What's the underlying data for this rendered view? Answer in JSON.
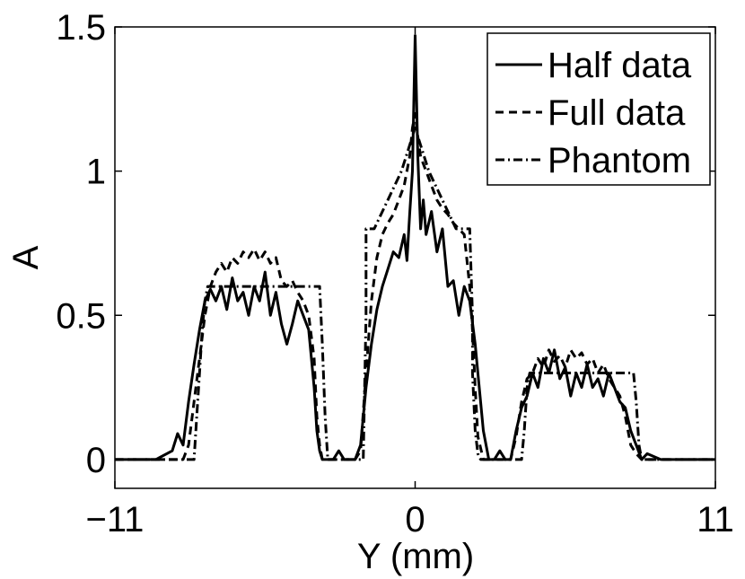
{
  "chart_data": {
    "type": "line",
    "title": "",
    "xlabel": "Y (mm)",
    "ylabel": "A",
    "xlim": [
      -11,
      11
    ],
    "ylim": [
      -0.1,
      1.5
    ],
    "x_ticks": [
      -11,
      0,
      11
    ],
    "x_tick_labels": [
      "−11",
      "0",
      "11"
    ],
    "y_ticks": [
      0,
      0.5,
      1,
      1.5
    ],
    "y_tick_labels": [
      "0",
      "0.5",
      "1",
      "1.5"
    ],
    "grid": false,
    "legend_position": "top-right",
    "series": [
      {
        "name": "Half data",
        "style": "solid",
        "x": [
          -11,
          -9.5,
          -8.9,
          -8.7,
          -8.5,
          -8.3,
          -8.1,
          -7.9,
          -7.7,
          -7.5,
          -7.3,
          -7.1,
          -6.9,
          -6.7,
          -6.5,
          -6.3,
          -6.1,
          -5.9,
          -5.7,
          -5.5,
          -5.3,
          -5.1,
          -4.9,
          -4.7,
          -4.5,
          -4.3,
          -4.1,
          -3.9,
          -3.7,
          -3.6,
          -3.5,
          -3.4,
          -3.2,
          -3.0,
          -2.8,
          -2.6,
          -2.4,
          -2.2,
          -2.0,
          -1.8,
          -1.6,
          -1.4,
          -1.2,
          -1.0,
          -0.8,
          -0.6,
          -0.4,
          -0.3,
          -0.2,
          -0.1,
          0,
          0.1,
          0.2,
          0.3,
          0.4,
          0.6,
          0.8,
          1.0,
          1.2,
          1.4,
          1.6,
          1.8,
          2.0,
          2.2,
          2.3,
          2.5,
          2.7,
          2.9,
          3.1,
          3.3,
          3.5,
          3.7,
          3.9,
          4.1,
          4.3,
          4.5,
          4.7,
          4.9,
          5.1,
          5.3,
          5.5,
          5.7,
          5.9,
          6.1,
          6.3,
          6.5,
          6.7,
          6.9,
          7.1,
          7.3,
          7.5,
          7.7,
          7.9,
          8.1,
          8.3,
          8.5,
          9.0,
          11
        ],
        "y": [
          0,
          0,
          0.03,
          0.09,
          0.05,
          0.2,
          0.33,
          0.45,
          0.55,
          0.59,
          0.55,
          0.6,
          0.52,
          0.63,
          0.55,
          0.58,
          0.5,
          0.6,
          0.55,
          0.65,
          0.5,
          0.58,
          0.47,
          0.4,
          0.47,
          0.55,
          0.5,
          0.45,
          0.25,
          0.1,
          0.03,
          0.0,
          0.0,
          0.0,
          0.03,
          0.0,
          0.0,
          0.0,
          0.05,
          0.25,
          0.4,
          0.52,
          0.6,
          0.66,
          0.72,
          0.7,
          0.78,
          0.69,
          0.85,
          1.0,
          1.47,
          1.05,
          0.8,
          0.9,
          0.78,
          0.86,
          0.72,
          0.8,
          0.6,
          0.62,
          0.5,
          0.6,
          0.55,
          0.4,
          0.3,
          0.1,
          0.0,
          0.0,
          0.03,
          0.0,
          0.0,
          0.1,
          0.18,
          0.22,
          0.3,
          0.25,
          0.35,
          0.3,
          0.38,
          0.28,
          0.32,
          0.22,
          0.3,
          0.25,
          0.33,
          0.25,
          0.28,
          0.22,
          0.3,
          0.25,
          0.2,
          0.18,
          0.1,
          0.05,
          0.0,
          0.02,
          0.0,
          0
        ]
      },
      {
        "name": "Full data",
        "style": "dashed",
        "x": [
          -11,
          -8.5,
          -8.3,
          -8.1,
          -7.9,
          -7.7,
          -7.5,
          -7.3,
          -7.1,
          -6.9,
          -6.7,
          -6.5,
          -6.3,
          -6.1,
          -5.9,
          -5.7,
          -5.5,
          -5.3,
          -5.1,
          -4.9,
          -4.7,
          -4.5,
          -4.3,
          -4.1,
          -3.9,
          -3.7,
          -3.6,
          -3.5,
          -3.4,
          -3.2,
          -3.0,
          -2.8,
          -2.6,
          -2.4,
          -2.2,
          -2.0,
          -1.8,
          -1.6,
          -1.4,
          -1.2,
          -1.0,
          -0.8,
          -0.6,
          -0.4,
          -0.2,
          -0.1,
          0,
          0.1,
          0.2,
          0.4,
          0.6,
          0.8,
          1.0,
          1.2,
          1.4,
          1.6,
          1.8,
          2.0,
          2.1,
          2.2,
          2.3,
          2.5,
          2.7,
          2.9,
          3.1,
          3.3,
          3.5,
          3.7,
          3.9,
          4.1,
          4.3,
          4.5,
          4.7,
          4.9,
          5.1,
          5.3,
          5.5,
          5.7,
          5.9,
          6.1,
          6.3,
          6.5,
          6.7,
          6.9,
          7.1,
          7.3,
          7.5,
          7.7,
          7.9,
          8.1,
          8.3,
          8.5,
          11
        ],
        "y": [
          0,
          0,
          0.05,
          0.2,
          0.35,
          0.5,
          0.6,
          0.65,
          0.68,
          0.65,
          0.7,
          0.68,
          0.72,
          0.7,
          0.73,
          0.69,
          0.72,
          0.68,
          0.7,
          0.62,
          0.6,
          0.62,
          0.58,
          0.55,
          0.5,
          0.35,
          0.15,
          0.05,
          0.0,
          0.0,
          0.0,
          0.0,
          0.0,
          0.0,
          0.0,
          0.03,
          0.3,
          0.55,
          0.7,
          0.78,
          0.82,
          0.85,
          0.9,
          0.95,
          1.05,
          1.15,
          1.2,
          1.12,
          1.05,
          1.0,
          0.95,
          0.9,
          0.87,
          0.85,
          0.82,
          0.8,
          0.78,
          0.6,
          0.45,
          0.25,
          0.08,
          0.0,
          0.0,
          0.0,
          0.0,
          0.0,
          0.0,
          0.08,
          0.2,
          0.28,
          0.3,
          0.35,
          0.32,
          0.38,
          0.34,
          0.36,
          0.32,
          0.38,
          0.35,
          0.37,
          0.33,
          0.35,
          0.3,
          0.33,
          0.28,
          0.25,
          0.22,
          0.15,
          0.05,
          0.02,
          0.0,
          0.0,
          0
        ]
      },
      {
        "name": "Phantom",
        "style": "dashdot",
        "x": [
          -11,
          -8.1,
          -8.0,
          -7.9,
          -7.8,
          -7.7,
          -7.6,
          -3.5,
          -3.5,
          -3.4,
          -3.3,
          -3.2,
          -1.9,
          -1.8,
          -1.8,
          -1.5,
          -1.0,
          -0.5,
          0,
          0.5,
          1.0,
          1.5,
          2.0,
          2.1,
          2.1,
          2.2,
          2.3,
          2.4,
          3.9,
          4.0,
          4.1,
          4.2,
          8.0,
          8.1,
          8.2,
          8.3,
          11
        ],
        "y": [
          0,
          0,
          0.15,
          0.3,
          0.45,
          0.55,
          0.6,
          0.6,
          0.6,
          0.4,
          0.15,
          0,
          0,
          0.5,
          0.8,
          0.8,
          0.9,
          1.0,
          1.15,
          1.0,
          0.9,
          0.8,
          0.8,
          0.5,
          0.3,
          0.1,
          0.02,
          0,
          0,
          0.1,
          0.25,
          0.3,
          0.3,
          0.2,
          0.05,
          0,
          0
        ]
      }
    ]
  }
}
